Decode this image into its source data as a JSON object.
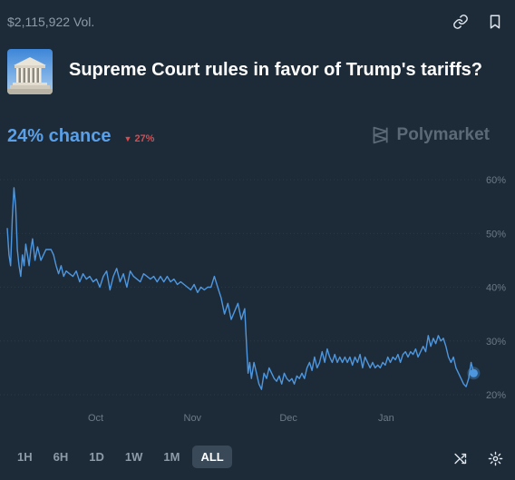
{
  "market": {
    "volume": "$2,115,922 Vol.",
    "title": "Supreme Court rules in favor of Trump's tariffs?",
    "chance": "24% chance",
    "change": "27%",
    "brand": "Polymarket",
    "image_icon": "supreme-court-building-icon"
  },
  "icons": {
    "link": "link-icon",
    "bookmark": "bookmark-icon",
    "shuffle": "shuffle-icon",
    "settings": "gear-icon"
  },
  "colors": {
    "background": "#1d2b39",
    "line": "#4e97df",
    "accent": "#5aa0e8",
    "down": "#e0484a"
  },
  "chart_data": {
    "type": "line",
    "title": "",
    "xlabel": "",
    "ylabel": "",
    "y_axis_side": "right",
    "grid": true,
    "x_ticks": [
      "Oct",
      "Nov",
      "Dec",
      "Jan"
    ],
    "y_ticks": [
      "60%",
      "50%",
      "40%",
      "30%",
      "20%"
    ],
    "ylim": [
      20,
      60
    ],
    "series": [
      {
        "values": [
          [
            0.0,
            51
          ],
          [
            0.2,
            46
          ],
          [
            0.4,
            44
          ],
          [
            0.6,
            53
          ],
          [
            0.8,
            58.5
          ],
          [
            1.0,
            55
          ],
          [
            1.2,
            47
          ],
          [
            1.4,
            44
          ],
          [
            1.6,
            42
          ],
          [
            1.8,
            46
          ],
          [
            2.0,
            44
          ],
          [
            2.2,
            48
          ],
          [
            2.4,
            46
          ],
          [
            2.6,
            44
          ],
          [
            2.8,
            47
          ],
          [
            3.0,
            49
          ],
          [
            3.3,
            45
          ],
          [
            3.6,
            47.5
          ],
          [
            4.0,
            45
          ],
          [
            4.3,
            46
          ],
          [
            4.6,
            47
          ],
          [
            4.9,
            47
          ],
          [
            5.2,
            47
          ],
          [
            5.5,
            46
          ],
          [
            5.8,
            44
          ],
          [
            6.1,
            42.5
          ],
          [
            6.4,
            44
          ],
          [
            6.7,
            42
          ],
          [
            7.0,
            43
          ],
          [
            7.4,
            42.5
          ],
          [
            7.8,
            42
          ],
          [
            8.2,
            43
          ],
          [
            8.6,
            41
          ],
          [
            9.0,
            42.5
          ],
          [
            9.4,
            41.5
          ],
          [
            9.8,
            42
          ],
          [
            10.2,
            41
          ],
          [
            10.6,
            41.5
          ],
          [
            11.0,
            40
          ],
          [
            11.4,
            42
          ],
          [
            11.8,
            43
          ],
          [
            12.2,
            39.5
          ],
          [
            12.6,
            42
          ],
          [
            13.0,
            43.5
          ],
          [
            13.4,
            41
          ],
          [
            13.8,
            42.5
          ],
          [
            14.2,
            40
          ],
          [
            14.6,
            43
          ],
          [
            15.0,
            42
          ],
          [
            15.4,
            41.5
          ],
          [
            15.8,
            41
          ],
          [
            16.2,
            42.5
          ],
          [
            16.6,
            42
          ],
          [
            17.0,
            41.5
          ],
          [
            17.4,
            42
          ],
          [
            17.8,
            41
          ],
          [
            18.2,
            42
          ],
          [
            18.6,
            41
          ],
          [
            19.0,
            42
          ],
          [
            19.4,
            41
          ],
          [
            19.8,
            41.5
          ],
          [
            20.2,
            40.5
          ],
          [
            20.6,
            41
          ],
          [
            21.0,
            40.5
          ],
          [
            21.4,
            40
          ],
          [
            21.8,
            39.5
          ],
          [
            22.2,
            40.5
          ],
          [
            22.6,
            39
          ],
          [
            23.0,
            40
          ],
          [
            23.4,
            39.5
          ],
          [
            23.8,
            40
          ],
          [
            24.2,
            40
          ],
          [
            24.6,
            42
          ],
          [
            25.0,
            40
          ],
          [
            25.4,
            38
          ],
          [
            25.8,
            35
          ],
          [
            26.2,
            37
          ],
          [
            26.6,
            34
          ],
          [
            27.0,
            35.5
          ],
          [
            27.4,
            37
          ],
          [
            27.8,
            34
          ],
          [
            28.2,
            36
          ],
          [
            28.4,
            30
          ],
          [
            28.6,
            24
          ],
          [
            28.8,
            26
          ],
          [
            29.0,
            23
          ],
          [
            29.3,
            26
          ],
          [
            29.6,
            24
          ],
          [
            29.9,
            22
          ],
          [
            30.2,
            21
          ],
          [
            30.5,
            24
          ],
          [
            30.8,
            23
          ],
          [
            31.1,
            25
          ],
          [
            31.4,
            24
          ],
          [
            31.7,
            23
          ],
          [
            32.0,
            22.5
          ],
          [
            32.3,
            23.5
          ],
          [
            32.6,
            22
          ],
          [
            32.9,
            24
          ],
          [
            33.2,
            23
          ],
          [
            33.5,
            22.5
          ],
          [
            33.8,
            23
          ],
          [
            34.1,
            22
          ],
          [
            34.4,
            23.5
          ],
          [
            34.7,
            23
          ],
          [
            35.0,
            24
          ],
          [
            35.3,
            23
          ],
          [
            35.6,
            25
          ],
          [
            35.9,
            26
          ],
          [
            36.2,
            24.5
          ],
          [
            36.5,
            27
          ],
          [
            36.8,
            25
          ],
          [
            37.1,
            26
          ],
          [
            37.4,
            28
          ],
          [
            37.7,
            26
          ],
          [
            38.0,
            28.5
          ],
          [
            38.3,
            27
          ],
          [
            38.6,
            26
          ],
          [
            38.9,
            27.5
          ],
          [
            39.2,
            26
          ],
          [
            39.5,
            27
          ],
          [
            39.8,
            26
          ],
          [
            40.1,
            27
          ],
          [
            40.4,
            26
          ],
          [
            40.7,
            27
          ],
          [
            41.0,
            25.5
          ],
          [
            41.3,
            27
          ],
          [
            41.6,
            26
          ],
          [
            41.9,
            27.5
          ],
          [
            42.2,
            25
          ],
          [
            42.5,
            27
          ],
          [
            42.8,
            26
          ],
          [
            43.1,
            25
          ],
          [
            43.4,
            26
          ],
          [
            43.7,
            25
          ],
          [
            44.0,
            25.5
          ],
          [
            44.3,
            25
          ],
          [
            44.6,
            26
          ],
          [
            44.9,
            25.5
          ],
          [
            45.2,
            27
          ],
          [
            45.5,
            26
          ],
          [
            45.8,
            27
          ],
          [
            46.1,
            26.5
          ],
          [
            46.4,
            27.5
          ],
          [
            46.7,
            26
          ],
          [
            47.0,
            27.5
          ],
          [
            47.3,
            28
          ],
          [
            47.6,
            27
          ],
          [
            47.9,
            28
          ],
          [
            48.2,
            27.5
          ],
          [
            48.5,
            28.5
          ],
          [
            48.8,
            27
          ],
          [
            49.1,
            28
          ],
          [
            49.4,
            29
          ],
          [
            49.7,
            28
          ],
          [
            50.0,
            31
          ],
          [
            50.3,
            29
          ],
          [
            50.6,
            30.5
          ],
          [
            50.9,
            29.5
          ],
          [
            51.2,
            31
          ],
          [
            51.5,
            30
          ],
          [
            51.8,
            30.5
          ],
          [
            52.1,
            29
          ],
          [
            52.4,
            27
          ],
          [
            52.7,
            26
          ],
          [
            53.0,
            27
          ],
          [
            53.3,
            25
          ],
          [
            53.6,
            24
          ],
          [
            53.9,
            23
          ],
          [
            54.2,
            22
          ],
          [
            54.5,
            21.5
          ],
          [
            54.8,
            23
          ],
          [
            55.1,
            26
          ],
          [
            55.4,
            24
          ]
        ]
      }
    ]
  },
  "range": {
    "buttons": [
      "1H",
      "6H",
      "1D",
      "1W",
      "1M",
      "ALL"
    ],
    "active": "ALL"
  }
}
